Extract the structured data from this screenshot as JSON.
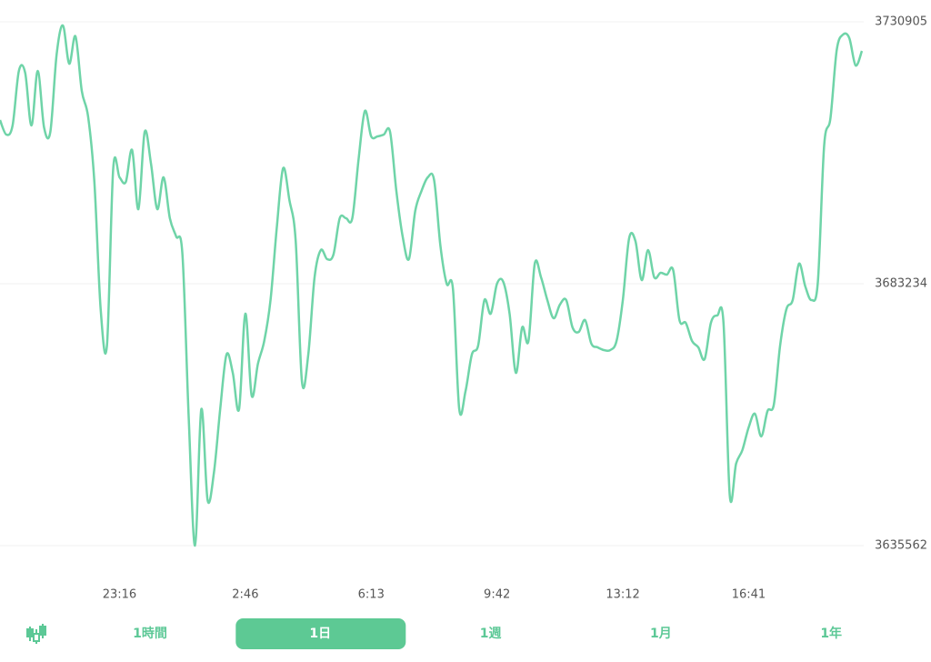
{
  "chart_data": {
    "type": "line",
    "categories": [
      null,
      null,
      null,
      null,
      null,
      null,
      null,
      null,
      null,
      null,
      null,
      null,
      null,
      null,
      null,
      null,
      null,
      null,
      null,
      "23:16",
      null,
      null,
      null,
      null,
      null,
      null,
      null,
      null,
      null,
      null,
      null,
      null,
      null,
      null,
      null,
      null,
      null,
      null,
      null,
      "2:46",
      null,
      null,
      null,
      null,
      null,
      null,
      null,
      null,
      null,
      null,
      null,
      null,
      null,
      null,
      null,
      null,
      null,
      null,
      null,
      "6:13",
      null,
      null,
      null,
      null,
      null,
      null,
      null,
      null,
      null,
      null,
      null,
      null,
      null,
      null,
      null,
      null,
      null,
      null,
      null,
      "9:42",
      null,
      null,
      null,
      null,
      null,
      null,
      null,
      null,
      null,
      null,
      null,
      null,
      null,
      null,
      null,
      null,
      null,
      null,
      null,
      "13:12",
      null,
      null,
      null,
      null,
      null,
      null,
      null,
      null,
      null,
      null,
      null,
      null,
      null,
      null,
      null,
      null,
      null,
      null,
      null,
      "16:41",
      null,
      null,
      null,
      null,
      null,
      null,
      null,
      null,
      null,
      null,
      null,
      null,
      null,
      null,
      null,
      null,
      null,
      null
    ],
    "values": [
      3713029,
      3710381,
      3712036,
      3721967,
      3721636,
      3712036,
      3721967,
      3711705,
      3710877,
      3724946,
      3730243,
      3723291,
      3728257,
      3718325,
      3713691,
      3701773,
      3678601,
      3671980,
      3704256,
      3702601,
      3701773,
      3707567,
      3696808,
      3710877,
      3705084,
      3696808,
      3702601,
      3695153,
      3691842,
      3688532,
      3658738,
      3635565,
      3660393,
      3643841,
      3648807,
      3660393,
      3670325,
      3667014,
      3660393,
      3677773,
      3662876,
      3668669,
      3672807,
      3680256,
      3693497,
      3704256,
      3698463,
      3691015,
      3665359,
      3670325,
      3684394,
      3689359,
      3687704,
      3688532,
      3695153,
      3695153,
      3695153,
      3705911,
      3714684,
      3710049,
      3710049,
      3710381,
      3710877,
      3700118,
      3691842,
      3687704,
      3696477,
      3700118,
      3702601,
      3702105,
      3690187,
      3683235,
      3682242,
      3660393,
      3663706,
      3670325,
      3671980,
      3680256,
      3677773,
      3683235,
      3683566,
      3677773,
      3667014,
      3675290,
      3672807,
      3686877,
      3684394,
      3680256,
      3676945,
      3679428,
      3680256,
      3675290,
      3674463,
      3676614,
      3672311,
      3671649,
      3671152,
      3671152,
      3672807,
      3680256,
      3691511,
      3691015,
      3683897,
      3689359,
      3684394,
      3685221,
      3684890,
      3685718,
      3676614,
      3676118,
      3672807,
      3671649,
      3669497,
      3676118,
      3677442,
      3676118,
      3644669,
      3650462,
      3652945,
      3657083,
      3659566,
      3655428,
      3660062,
      3661221,
      3671980,
      3678601,
      3680256,
      3686877,
      3682739,
      3680256,
      3683566,
      3708394,
      3713360,
      3725774,
      3728588,
      3727926,
      3722960,
      3725608
    ],
    "color": "#6fd4a8",
    "ylim": [
      3730905,
      3635562
    ],
    "yticks": [
      3730905,
      3683234,
      3635562
    ],
    "grid": true
  },
  "tabs": {
    "labels": [
      "1時間",
      "1日",
      "1週",
      "1月",
      "1年"
    ],
    "selected": 1
  }
}
